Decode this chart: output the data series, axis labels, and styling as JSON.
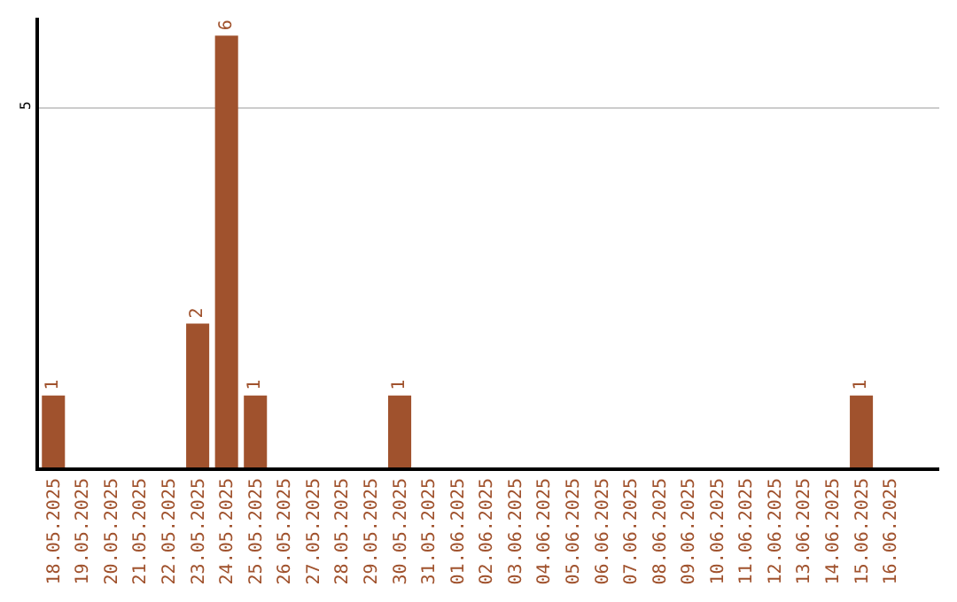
{
  "chart_data": {
    "type": "bar",
    "categories": [
      "18.05.2025",
      "19.05.2025",
      "20.05.2025",
      "21.05.2025",
      "22.05.2025",
      "23.05.2025",
      "24.05.2025",
      "25.05.2025",
      "26.05.2025",
      "27.05.2025",
      "28.05.2025",
      "29.05.2025",
      "30.05.2025",
      "31.05.2025",
      "01.06.2025",
      "02.06.2025",
      "03.06.2025",
      "04.06.2025",
      "05.06.2025",
      "06.06.2025",
      "07.06.2025",
      "08.06.2025",
      "09.06.2025",
      "10.06.2025",
      "11.06.2025",
      "12.06.2025",
      "13.06.2025",
      "14.06.2025",
      "15.06.2025",
      "16.06.2025"
    ],
    "values": [
      1,
      0,
      0,
      0,
      0,
      2,
      6,
      1,
      0,
      0,
      0,
      0,
      1,
      0,
      0,
      0,
      0,
      0,
      0,
      0,
      0,
      0,
      0,
      0,
      0,
      0,
      0,
      0,
      1,
      0
    ],
    "value_labels": [
      "1",
      null,
      null,
      null,
      null,
      "2",
      "6",
      "1",
      null,
      null,
      null,
      null,
      "1",
      null,
      null,
      null,
      null,
      null,
      null,
      null,
      null,
      null,
      null,
      null,
      null,
      null,
      null,
      null,
      "1",
      null
    ],
    "color": "#a0522d",
    "ylim": [
      0,
      6.25
    ],
    "yticks": [
      5
    ],
    "grid": "y",
    "legend": false
  }
}
